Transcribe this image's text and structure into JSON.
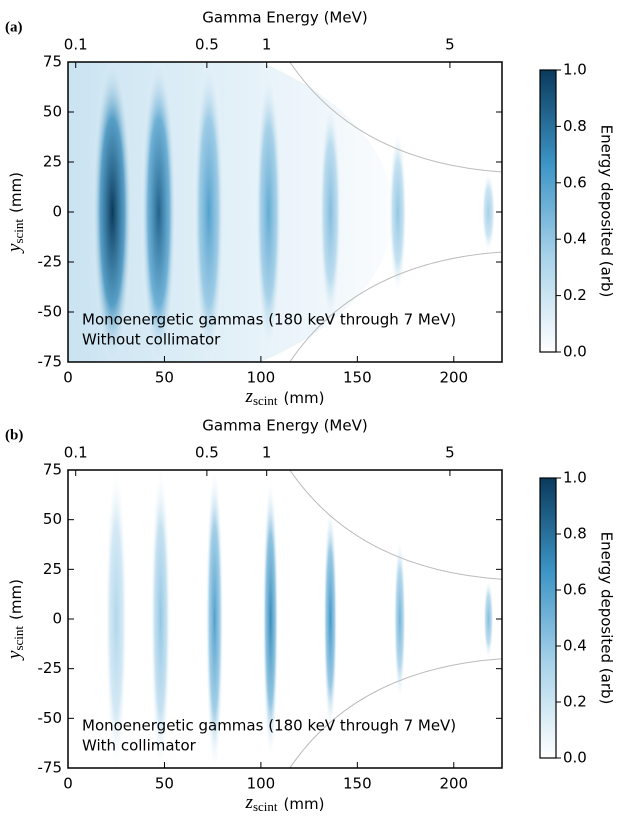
{
  "chart_data": [
    {
      "type": "heatmap",
      "panel_label": "(a)",
      "top_axis_label": "Gamma Energy (MeV)",
      "x2ticks": [
        0.1,
        0.5,
        1,
        5
      ],
      "x2tick_positions": [
        4,
        72,
        103,
        198
      ],
      "xlabel": "z",
      "xlabel_sub": "scint",
      "xlabel_unit": "(mm)",
      "ylabel": "y",
      "ylabel_sub": "scint",
      "ylabel_unit": "(mm)",
      "xlim": [
        0,
        225
      ],
      "xticks": [
        0,
        50,
        100,
        150,
        200
      ],
      "ylim": [
        -75,
        75
      ],
      "yticks": [
        -75,
        -50,
        -25,
        0,
        25,
        50,
        75
      ],
      "x": [
        23,
        47,
        73,
        104,
        136,
        171,
        218
      ],
      "values": [
        1.0,
        0.85,
        0.6,
        0.55,
        0.45,
        0.4,
        0.35
      ],
      "annotations": [
        "Monoenergetic gammas (180 keV through 7 MeV)",
        "Without collimator"
      ],
      "colorbar_label": "Energy deposited (arb)",
      "clim": [
        0,
        1
      ],
      "cticks": [
        {
          "value": 0,
          "label": "0.0"
        },
        {
          "value": 0.2,
          "label": "0.2"
        },
        {
          "value": 0.4,
          "label": "0.4"
        },
        {
          "value": 0.6,
          "label": "0.6"
        },
        {
          "value": 0.8,
          "label": "0.8"
        },
        {
          "value": 1,
          "label": "1.0"
        }
      ],
      "colormap": [
        "#ffffff",
        "#a9d3ea",
        "#3d95c6",
        "#0a3a5c"
      ]
    },
    {
      "type": "heatmap",
      "panel_label": "(b)",
      "top_axis_label": "Gamma Energy (MeV)",
      "x2ticks": [
        0.1,
        0.5,
        1,
        5
      ],
      "x2tick_positions": [
        4,
        72,
        103,
        198
      ],
      "xlabel": "z",
      "xlabel_sub": "scint",
      "xlabel_unit": "(mm)",
      "ylabel": "y",
      "ylabel_sub": "scint",
      "ylabel_unit": "(mm)",
      "xlim": [
        0,
        225
      ],
      "xticks": [
        0,
        50,
        100,
        150,
        200
      ],
      "ylim": [
        -75,
        75
      ],
      "yticks": [
        -75,
        -50,
        -25,
        0,
        25,
        50,
        75
      ],
      "x": [
        25,
        48,
        76,
        105,
        136,
        172,
        218
      ],
      "values": [
        0.3,
        0.4,
        0.6,
        0.7,
        0.65,
        0.5,
        0.45
      ],
      "annotations": [
        "Monoenergetic gammas (180 keV through 7 MeV)",
        "With collimator"
      ],
      "colorbar_label": "Energy deposited (arb)",
      "clim": [
        0,
        1
      ],
      "cticks": [
        {
          "value": 0,
          "label": "0.0"
        },
        {
          "value": 0.2,
          "label": "0.2"
        },
        {
          "value": 0.4,
          "label": "0.4"
        },
        {
          "value": 0.6,
          "label": "0.6"
        },
        {
          "value": 0.8,
          "label": "0.8"
        },
        {
          "value": 1,
          "label": "1.0"
        }
      ],
      "colormap": [
        "#ffffff",
        "#a9d3ea",
        "#3d95c6",
        "#0a3a5c"
      ]
    }
  ]
}
